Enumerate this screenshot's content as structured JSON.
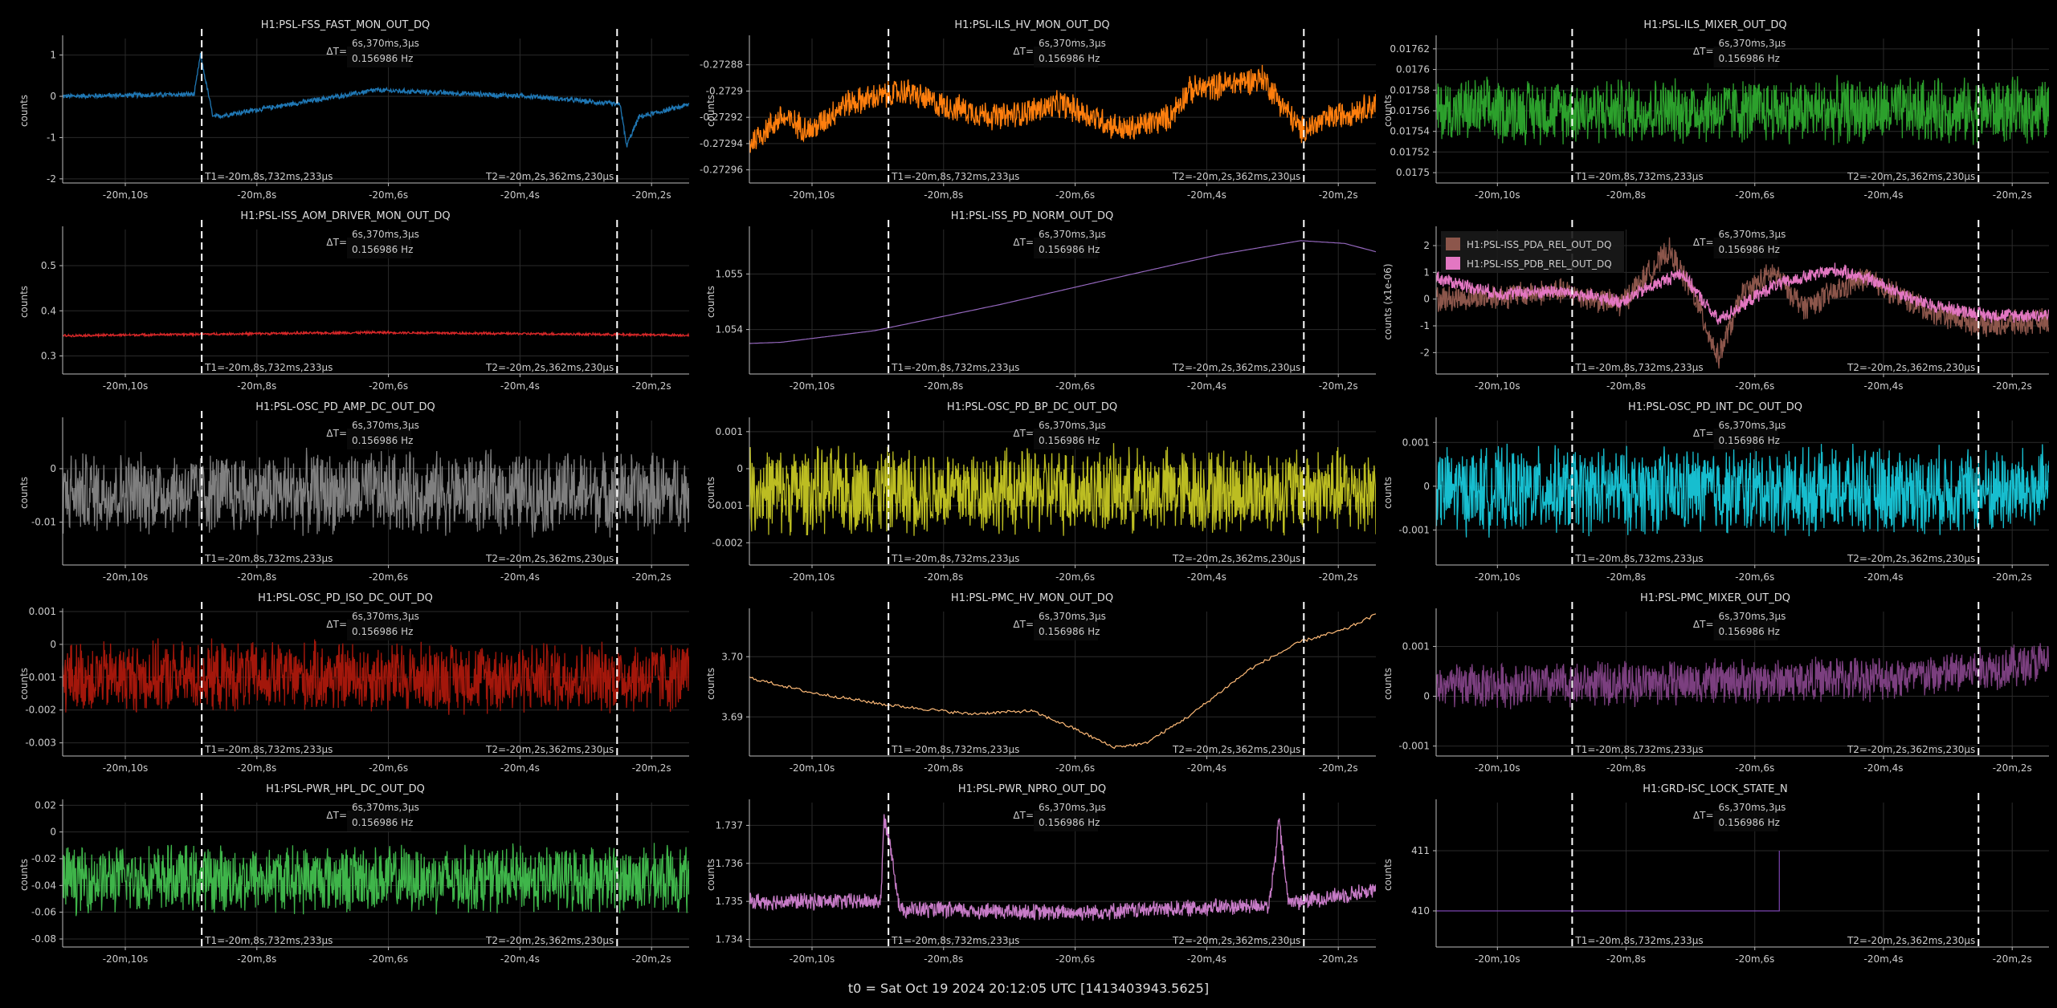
{
  "footer": "t0 = Sat Oct 19 2024 20:12:05 UTC [1413403943.5625]",
  "colors": {
    "background": "#000000",
    "cursor": "#ffffff",
    "grid": "#2a2a2a"
  },
  "cursor_labels": {
    "dt_prefix": "ΔT=",
    "dt_value": "6s,370ms,3μs",
    "freq": "0.156986 Hz",
    "t1": "T1=-20m,8s,732ms,233μs",
    "t2": "T2=-20m,2s,362ms,230μs"
  },
  "chart_data": [
    {
      "type": "line",
      "title": "H1:PSL-FSS_FAST_MON_OUT_DQ",
      "ylabel": "counts",
      "ylim": [
        -2.1,
        1.4
      ],
      "yticks": [
        1,
        0,
        -1,
        -2
      ],
      "yticklabels": [
        "1",
        "0",
        "-1",
        "-2"
      ],
      "xticklabels": [
        "-20m,10s",
        "-20m,8s",
        "-20m,6s",
        "-20m,4s",
        "-20m,2s"
      ],
      "style": "noise",
      "color": "#1f77b4",
      "series": [
        {
          "x": [
            0,
            0.21,
            0.22,
            0.24,
            0.5,
            0.75,
            0.89,
            0.9,
            0.92,
            1
          ],
          "y": [
            0,
            0.05,
            1.0,
            -0.5,
            0.15,
            0,
            -0.2,
            -1.2,
            -0.5,
            -0.2
          ],
          "amplitude": 0.07
        }
      ]
    },
    {
      "type": "line",
      "title": "H1:PSL-ILS_HV_MON_OUT_DQ",
      "ylabel": "counts",
      "ylim": [
        -0.27297,
        -0.27286
      ],
      "yticks": [
        -0.27288,
        -0.2729,
        -0.27292,
        -0.27294,
        -0.27296
      ],
      "yticklabels": [
        "-0.27288",
        "-0.2729",
        "-0.27292",
        "-0.27294",
        "-0.27296"
      ],
      "xticklabels": [
        "-20m,10s",
        "-20m,8s",
        "-20m,6s",
        "-20m,4s",
        "-20m,2s"
      ],
      "style": "noise",
      "color": "#ff7f0e",
      "series": [
        {
          "x": [
            0,
            0.05,
            0.1,
            0.15,
            0.25,
            0.3,
            0.4,
            0.5,
            0.6,
            0.67,
            0.7,
            0.82,
            0.88,
            0.93,
            1
          ],
          "y": [
            -0.27294,
            -0.27292,
            -0.27293,
            -0.27291,
            -0.2729,
            -0.27291,
            -0.27292,
            -0.27291,
            -0.27293,
            -0.27292,
            -0.2729,
            -0.27289,
            -0.27293,
            -0.27292,
            -0.27291
          ],
          "amplitude": 1.2e-05
        }
      ]
    },
    {
      "type": "line",
      "title": "H1:PSL-ILS_MIXER_OUT_DQ",
      "ylabel": "counts",
      "ylim": [
        0.01749,
        0.01763
      ],
      "yticks": [
        0.01762,
        0.0176,
        0.01758,
        0.01756,
        0.01754,
        0.01752,
        0.0175
      ],
      "yticklabels": [
        "0.01762",
        "0.0176",
        "0.01758",
        "0.01756",
        "0.01754",
        "0.01752",
        "0.0175"
      ],
      "xticklabels": [
        "-20m,10s",
        "-20m,8s",
        "-20m,6s",
        "-20m,4s",
        "-20m,2s"
      ],
      "style": "noise",
      "color": "#2ca02c",
      "series": [
        {
          "x": [
            0,
            1
          ],
          "y": [
            0.01756,
            0.01756
          ],
          "amplitude": 3.5e-05
        }
      ]
    },
    {
      "type": "line",
      "title": "H1:PSL-ISS_AOM_DRIVER_MON_OUT_DQ",
      "ylabel": "counts",
      "ylim": [
        0.26,
        0.58
      ],
      "yticks": [
        0.5,
        0.4,
        0.3
      ],
      "yticklabels": [
        "0.5",
        "0.4",
        "0.3"
      ],
      "xticklabels": [
        "-20m,10s",
        "-20m,8s",
        "-20m,6s",
        "-20m,4s",
        "-20m,2s"
      ],
      "style": "noise",
      "color": "#d62728",
      "series": [
        {
          "x": [
            0,
            0.5,
            1
          ],
          "y": [
            0.345,
            0.352,
            0.346
          ],
          "amplitude": 0.003
        }
      ]
    },
    {
      "type": "line",
      "title": "H1:PSL-ISS_PD_NORM_OUT_DQ",
      "ylabel": "counts",
      "ylim": [
        1.0532,
        1.0558
      ],
      "yticks": [
        1.055,
        1.054
      ],
      "yticklabels": [
        "1.055",
        "1.054"
      ],
      "xticklabels": [
        "-20m,10s",
        "-20m,8s",
        "-20m,6s",
        "-20m,4s",
        "-20m,2s"
      ],
      "style": "line",
      "color": "#9467bd",
      "series": [
        {
          "x": [
            0,
            0.05,
            0.2,
            0.4,
            0.6,
            0.75,
            0.88,
            0.95,
            1
          ],
          "y": [
            1.05375,
            1.05377,
            1.05398,
            1.05445,
            1.05497,
            1.05535,
            1.0556,
            1.05555,
            1.0554
          ],
          "amplitude": 0
        }
      ]
    },
    {
      "type": "line",
      "title": "",
      "ylabel": "counts (x1e-06)",
      "ylim": [
        -2.8,
        2.6
      ],
      "yticks": [
        2,
        1,
        0,
        -1,
        -2
      ],
      "yticklabels": [
        "2",
        "1",
        "0",
        "-1",
        "-2"
      ],
      "xticklabels": [
        "-20m,10s",
        "-20m,8s",
        "-20m,6s",
        "-20m,4s",
        "-20m,2s"
      ],
      "style": "noise",
      "legend": "top-left",
      "series": [
        {
          "name": "H1:PSL-ISS_PDA_REL_OUT_DQ",
          "color": "#8c564b",
          "x": [
            0,
            0.1,
            0.2,
            0.3,
            0.38,
            0.42,
            0.46,
            0.5,
            0.55,
            0.6,
            0.7,
            0.8,
            0.9,
            1
          ],
          "y": [
            0,
            0.1,
            0.3,
            -0.2,
            1.8,
            0.2,
            -2.2,
            0.2,
            1.0,
            -0.3,
            0.8,
            -0.4,
            -1.0,
            -0.8
          ],
          "amplitude": 0.55
        },
        {
          "name": "H1:PSL-ISS_PDB_REL_OUT_DQ",
          "color": "#e377c2",
          "x": [
            0,
            0.1,
            0.2,
            0.3,
            0.4,
            0.46,
            0.55,
            0.65,
            0.7,
            0.8,
            0.9,
            1
          ],
          "y": [
            0.8,
            0.2,
            0.3,
            -0.1,
            1.0,
            -0.8,
            0.5,
            1.1,
            0.8,
            -0.2,
            -0.6,
            -0.6
          ],
          "amplitude": 0.3
        }
      ]
    },
    {
      "type": "line",
      "title": "H1:PSL-OSC_PD_AMP_DC_OUT_DQ",
      "ylabel": "counts",
      "ylim": [
        -0.018,
        0.009
      ],
      "yticks": [
        0,
        -0.01
      ],
      "yticklabels": [
        "0",
        "-0.01"
      ],
      "xticklabels": [
        "-20m,10s",
        "-20m,8s",
        "-20m,6s",
        "-20m,4s",
        "-20m,2s"
      ],
      "style": "noise",
      "color": "#7f7f7f",
      "series": [
        {
          "x": [
            0,
            1
          ],
          "y": [
            -0.0045,
            -0.0045
          ],
          "amplitude": 0.0085
        }
      ]
    },
    {
      "type": "line",
      "title": "H1:PSL-OSC_PD_BP_DC_OUT_DQ",
      "ylabel": "counts",
      "ylim": [
        -0.0026,
        0.0013
      ],
      "yticks": [
        0.001,
        0,
        -0.001,
        -0.002
      ],
      "yticklabels": [
        "0.001",
        "0",
        "-0.001",
        "-0.002"
      ],
      "xticklabels": [
        "-20m,10s",
        "-20m,8s",
        "-20m,6s",
        "-20m,4s",
        "-20m,2s"
      ],
      "style": "noise",
      "color": "#bcbd22",
      "series": [
        {
          "x": [
            0,
            1
          ],
          "y": [
            -0.0006,
            -0.0006
          ],
          "amplitude": 0.0013
        }
      ]
    },
    {
      "type": "line",
      "title": "H1:PSL-OSC_PD_INT_DC_OUT_DQ",
      "ylabel": "counts",
      "ylim": [
        -0.0018,
        0.0015
      ],
      "yticks": [
        0.001,
        0,
        -0.001
      ],
      "yticklabels": [
        "0.001",
        "0",
        "-0.001"
      ],
      "xticklabels": [
        "-20m,10s",
        "-20m,8s",
        "-20m,6s",
        "-20m,4s",
        "-20m,2s"
      ],
      "style": "noise",
      "color": "#17becf",
      "series": [
        {
          "x": [
            0,
            1
          ],
          "y": [
            -0.0001,
            -0.0001
          ],
          "amplitude": 0.0011
        }
      ]
    },
    {
      "type": "line",
      "title": "H1:PSL-OSC_PD_ISO_DC_OUT_DQ",
      "ylabel": "counts",
      "ylim": [
        -0.0034,
        0.001
      ],
      "yticks": [
        0.001,
        0,
        -0.001,
        -0.002,
        -0.003
      ],
      "yticklabels": [
        "0.001",
        "0",
        "-0.001",
        "-0.002",
        "-0.003"
      ],
      "xticklabels": [
        "-20m,10s",
        "-20m,8s",
        "-20m,6s",
        "-20m,4s",
        "-20m,2s"
      ],
      "style": "noise",
      "color": "#a3170b",
      "series": [
        {
          "x": [
            0,
            1
          ],
          "y": [
            -0.001,
            -0.001
          ],
          "amplitude": 0.0012
        }
      ]
    },
    {
      "type": "line",
      "title": "H1:PSL-PMC_HV_MON_OUT_DQ",
      "ylabel": "counts",
      "ylim": [
        3.6835,
        3.7075
      ],
      "yticks": [
        3.7,
        3.69
      ],
      "yticklabels": [
        "3.70",
        "3.69"
      ],
      "xticklabels": [
        "-20m,10s",
        "-20m,8s",
        "-20m,6s",
        "-20m,4s",
        "-20m,2s"
      ],
      "style": "line",
      "color": "#ffbb78",
      "series": [
        {
          "x": [
            0,
            0.1,
            0.22,
            0.35,
            0.45,
            0.52,
            0.58,
            0.63,
            0.7,
            0.8,
            0.88,
            0.95,
            1
          ],
          "y": [
            3.6965,
            3.694,
            3.692,
            3.6905,
            3.691,
            3.688,
            3.685,
            3.6855,
            3.69,
            3.698,
            3.7025,
            3.7045,
            3.707
          ],
          "amplitude": 0.00025
        }
      ]
    },
    {
      "type": "line",
      "title": "H1:PSL-PMC_MIXER_OUT_DQ",
      "ylabel": "counts",
      "ylim": [
        -0.0012,
        0.0017
      ],
      "yticks": [
        0.001,
        0,
        -0.001
      ],
      "yticklabels": [
        "0.001",
        "0",
        "-0.001"
      ],
      "xticklabels": [
        "-20m,10s",
        "-20m,8s",
        "-20m,6s",
        "-20m,4s",
        "-20m,2s"
      ],
      "style": "noise",
      "color": "#7b3f7f",
      "series": [
        {
          "x": [
            0,
            0.5,
            0.8,
            1
          ],
          "y": [
            0.0002,
            0.0003,
            0.0004,
            0.0007
          ],
          "amplitude": 0.0005
        }
      ]
    },
    {
      "type": "line",
      "title": "H1:PSL-PWR_HPL_DC_OUT_DQ",
      "ylabel": "counts",
      "ylim": [
        -0.086,
        0.022
      ],
      "yticks": [
        0.02,
        0,
        -0.02,
        -0.04,
        -0.06,
        -0.08
      ],
      "yticklabels": [
        "0.02",
        "0",
        "-0.02",
        "-0.04",
        "-0.06",
        "-0.08"
      ],
      "xticklabels": [
        "-20m,10s",
        "-20m,8s",
        "-20m,6s",
        "-20m,4s",
        "-20m,2s"
      ],
      "style": "noise",
      "color": "#3fb54a",
      "series": [
        {
          "x": [
            0,
            1
          ],
          "y": [
            -0.035,
            -0.035
          ],
          "amplitude": 0.028
        }
      ]
    },
    {
      "type": "line",
      "title": "H1:PSL-PWR_NPRO_OUT_DQ",
      "ylabel": "counts",
      "ylim": [
        1.7338,
        1.7376
      ],
      "yticks": [
        1.737,
        1.736,
        1.735,
        1.734
      ],
      "yticklabels": [
        "1.737",
        "1.736",
        "1.735",
        "1.734"
      ],
      "xticklabels": [
        "-20m,10s",
        "-20m,8s",
        "-20m,6s",
        "-20m,4s",
        "-20m,2s"
      ],
      "style": "noise",
      "color": "#c77bc7",
      "series": [
        {
          "x": [
            0,
            0.21,
            0.215,
            0.225,
            0.24,
            0.5,
            0.83,
            0.84,
            0.845,
            0.86,
            0.88,
            1
          ],
          "y": [
            1.735,
            1.735,
            1.7372,
            1.7365,
            1.7348,
            1.7347,
            1.7349,
            1.7362,
            1.7372,
            1.735,
            1.735,
            1.7353
          ],
          "amplitude": 0.00025
        }
      ]
    },
    {
      "type": "step",
      "title": "H1:GRD-ISC_LOCK_STATE_N",
      "ylabel": "counts",
      "ylim": [
        409.4,
        411.8
      ],
      "yticks": [
        411,
        410
      ],
      "yticklabels": [
        "411",
        "410"
      ],
      "xticklabels": [
        "-20m,10s",
        "-20m,8s",
        "-20m,6s",
        "-20m,4s",
        "-20m,2s"
      ],
      "style": "step",
      "color": "#7b45b0",
      "series": [
        {
          "x": [
            0,
            0.56,
            0.56
          ],
          "y": [
            410,
            410,
            411
          ],
          "amplitude": 0
        }
      ]
    }
  ]
}
